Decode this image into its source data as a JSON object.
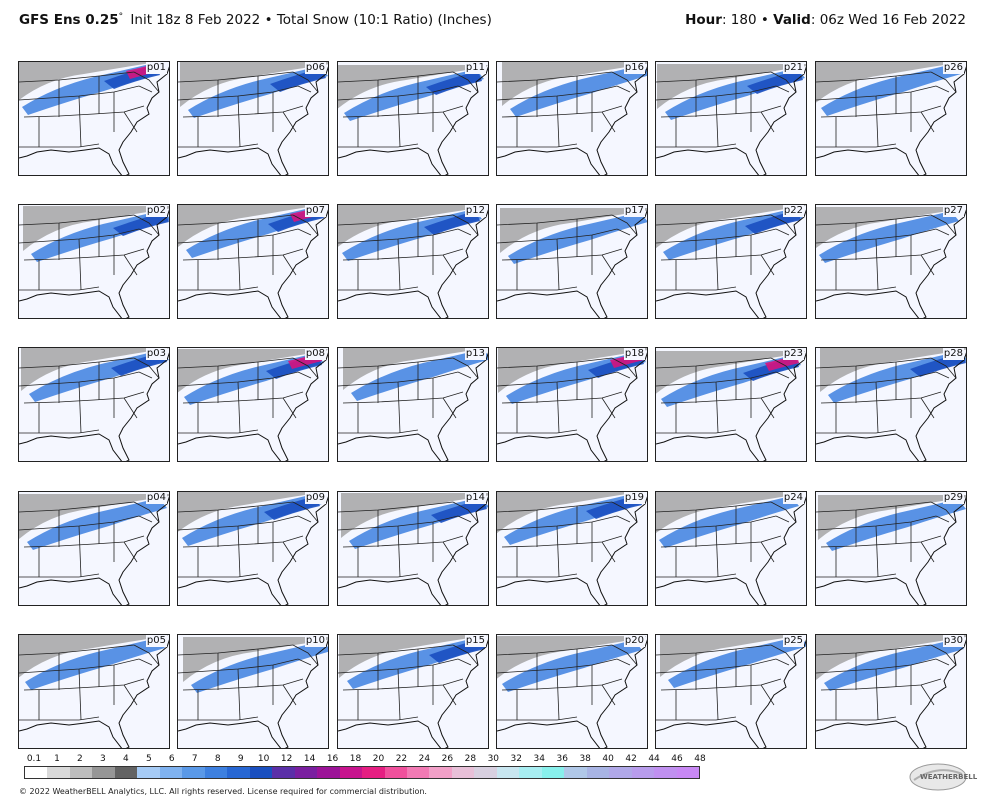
{
  "header": {
    "model": "GFS Ens 0.25",
    "degree": "°",
    "init": "Init 18z 8 Feb 2022",
    "bullet": "•",
    "product": "Total Snow (10:1 Ratio) (Inches)",
    "hour_label": "Hour",
    "hour_value": ": 180",
    "valid_label": "Valid",
    "valid_value": ": 06z Wed 16 Feb 2022"
  },
  "panels": [
    {
      "label": "p01",
      "intensity": 3
    },
    {
      "label": "p06",
      "intensity": 2
    },
    {
      "label": "p11",
      "intensity": 2
    },
    {
      "label": "p16",
      "intensity": 1
    },
    {
      "label": "p21",
      "intensity": 2
    },
    {
      "label": "p26",
      "intensity": 1
    },
    {
      "label": "p02",
      "intensity": 2
    },
    {
      "label": "p07",
      "intensity": 3
    },
    {
      "label": "p12",
      "intensity": 2
    },
    {
      "label": "p17",
      "intensity": 1
    },
    {
      "label": "p22",
      "intensity": 2
    },
    {
      "label": "p27",
      "intensity": 1
    },
    {
      "label": "p03",
      "intensity": 2
    },
    {
      "label": "p08",
      "intensity": 3
    },
    {
      "label": "p13",
      "intensity": 1
    },
    {
      "label": "p18",
      "intensity": 3
    },
    {
      "label": "p23",
      "intensity": 3
    },
    {
      "label": "p28",
      "intensity": 2
    },
    {
      "label": "p04",
      "intensity": 1
    },
    {
      "label": "p09",
      "intensity": 2
    },
    {
      "label": "p14",
      "intensity": 2
    },
    {
      "label": "p19",
      "intensity": 2
    },
    {
      "label": "p24",
      "intensity": 1
    },
    {
      "label": "p29",
      "intensity": 1
    },
    {
      "label": "p05",
      "intensity": 1
    },
    {
      "label": "p10",
      "intensity": 1
    },
    {
      "label": "p15",
      "intensity": 2
    },
    {
      "label": "p20",
      "intensity": 1
    },
    {
      "label": "p25",
      "intensity": 1
    },
    {
      "label": "p30",
      "intensity": 1
    }
  ],
  "legend": {
    "labels": [
      "0.1",
      "1",
      "2",
      "3",
      "4",
      "5",
      "6",
      "7",
      "8",
      "9",
      "10",
      "12",
      "14",
      "16",
      "18",
      "20",
      "22",
      "24",
      "26",
      "28",
      "30",
      "32",
      "34",
      "36",
      "38",
      "40",
      "42",
      "44",
      "46",
      "48"
    ],
    "colors": [
      "#ffffff",
      "#d9d9d9",
      "#bdbdbd",
      "#969696",
      "#636363",
      "#a6cbf5",
      "#7fb2f0",
      "#5a99e8",
      "#3d80e0",
      "#2767d4",
      "#1a4fc0",
      "#5b2fa8",
      "#7a1fa0",
      "#9c1398",
      "#c8148e",
      "#e61e82",
      "#f0509c",
      "#f27ab4",
      "#f2a0c8",
      "#e8c0d8",
      "#d8d0e0",
      "#c8e6f0",
      "#a8eef2",
      "#88f0ec",
      "#b0c8e8",
      "#a8b4e4",
      "#b0a8e8",
      "#b89cec",
      "#c090f0",
      "#c888f4"
    ]
  },
  "copyright": "© 2022 WeatherBELL Analytics, LLC. All rights reserved. License required for commercial distribution.",
  "logo_text": "WEATHERBELL"
}
